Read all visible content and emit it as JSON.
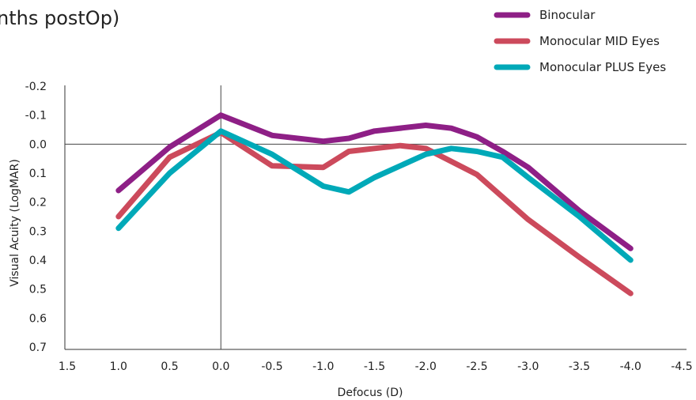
{
  "chart_data": {
    "type": "line",
    "title": "nths postOp)",
    "xlabel": "Defocus (D)",
    "ylabel": "Visual Acuity (LogMAR)",
    "x_ticks": [
      "1.5",
      "1.0",
      "0.5",
      "0.0",
      "-0.5",
      "-1.0",
      "-1.5",
      "-2.0",
      "-2.5",
      "-3.0",
      "-3.5",
      "-4.0",
      "-4.5"
    ],
    "y_ticks": [
      "-0.2",
      "-0.1",
      "0.0",
      "0.1",
      "0.2",
      "0.3",
      "0.4",
      "0.5",
      "0.6",
      "0.7"
    ],
    "xlim": [
      1.5,
      -4.5
    ],
    "ylim": [
      -0.2,
      0.7
    ],
    "y_inverted": true,
    "legend_position": "top-right",
    "series": [
      {
        "name": "Binocular",
        "color": "#8e1f86",
        "x": [
          1.0,
          0.5,
          0.0,
          -0.5,
          -1.0,
          -1.25,
          -1.5,
          -2.0,
          -2.25,
          -2.5,
          -2.75,
          -3.0,
          -3.5,
          -4.0
        ],
        "y": [
          0.16,
          0.01,
          -0.1,
          -0.03,
          -0.01,
          -0.02,
          -0.045,
          -0.065,
          -0.055,
          -0.025,
          0.025,
          0.08,
          0.23,
          0.36
        ]
      },
      {
        "name": "Monocular MID Eyes",
        "color": "#cc4a5c",
        "x": [
          1.0,
          0.5,
          0.0,
          -0.5,
          -1.0,
          -1.25,
          -1.5,
          -1.75,
          -2.0,
          -2.5,
          -3.0,
          -3.5,
          -4.0
        ],
        "y": [
          0.25,
          0.045,
          -0.04,
          0.075,
          0.08,
          0.025,
          0.015,
          0.005,
          0.015,
          0.105,
          0.26,
          0.39,
          0.515
        ]
      },
      {
        "name": "Monocular PLUS Eyes",
        "color": "#00a9b8",
        "x": [
          1.0,
          0.5,
          0.0,
          -0.5,
          -1.0,
          -1.25,
          -1.5,
          -2.0,
          -2.25,
          -2.5,
          -2.75,
          -3.0,
          -3.5,
          -4.0
        ],
        "y": [
          0.29,
          0.1,
          -0.045,
          0.035,
          0.145,
          0.165,
          0.115,
          0.035,
          0.015,
          0.025,
          0.045,
          0.115,
          0.25,
          0.4
        ]
      }
    ]
  }
}
